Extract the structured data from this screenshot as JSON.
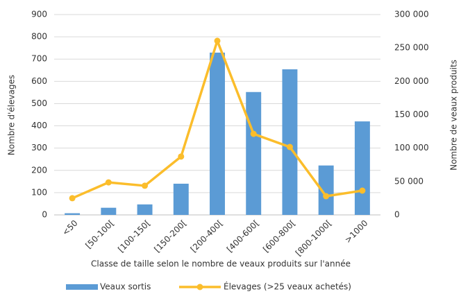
{
  "chart_data": {
    "type": "bar",
    "categories": [
      "<50",
      "[50-100[",
      "[100-150[",
      "[150-200[",
      "[200-400[",
      "[400-600[",
      "[600-800[",
      "[800-1000[",
      ">1000"
    ],
    "xlabel": "Classe de taille selon le nombre de veaux produits sur l'année",
    "ylabel": "Nombre d'élevages",
    "y2label": "Nombre de veaux produits",
    "ylim": [
      0,
      900
    ],
    "yticks": [
      0,
      100,
      200,
      300,
      400,
      500,
      600,
      700,
      800,
      900
    ],
    "y2lim": [
      0,
      300000
    ],
    "y2ticks": [
      0,
      {
        "value": 50000,
        "label": "50 000"
      },
      {
        "value": 100000,
        "label": "100 000"
      },
      {
        "value": 150000,
        "label": "150 000"
      },
      {
        "value": 200000,
        "label": "200 000"
      },
      {
        "value": 250000,
        "label": "250 000"
      },
      {
        "value": 300000,
        "label": "300 000"
      }
    ],
    "grid": true,
    "legend": "bottom",
    "series": [
      {
        "name": "Veaux sortis",
        "type": "bar",
        "axis": "y2",
        "color": "#5b9bd5",
        "values": [
          2500,
          10700,
          15700,
          46700,
          243000,
          184000,
          218000,
          74000,
          140000
        ]
      },
      {
        "name": "Élevages (>25 veaux achetés)",
        "type": "line",
        "axis": "y",
        "color": "#fbbd2b",
        "values": [
          75,
          146,
          131,
          262,
          782,
          364,
          305,
          84,
          109
        ]
      }
    ]
  }
}
